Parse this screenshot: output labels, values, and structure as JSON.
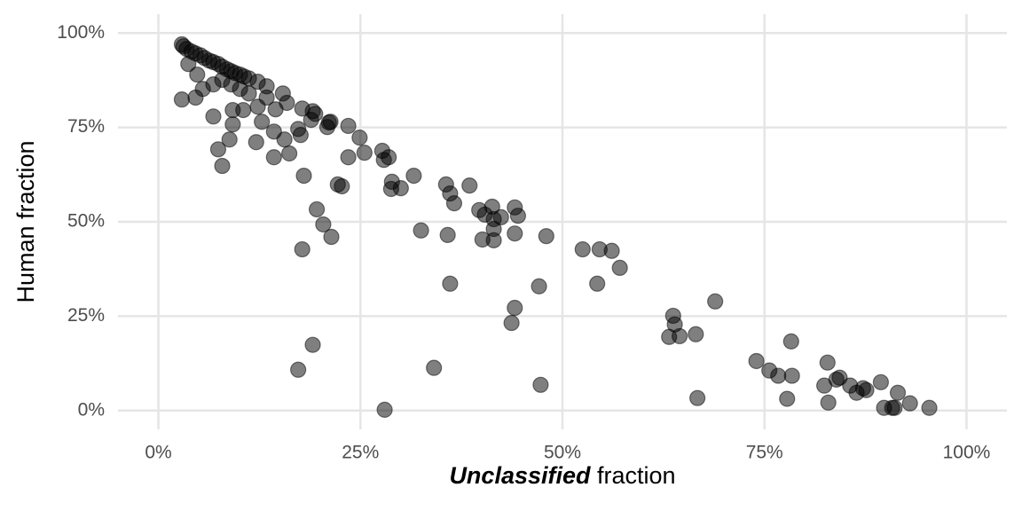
{
  "chart_data": {
    "type": "scatter",
    "xlabel": {
      "emphasis": "Unclassified",
      "rest": "fraction"
    },
    "ylabel": "Human fraction",
    "color": "#000000",
    "opacity": 0.5,
    "grid": true,
    "xlim": [
      -5,
      105
    ],
    "ylim": [
      -5,
      105
    ],
    "xticks": [
      {
        "value": 0,
        "label": "0%"
      },
      {
        "value": 25,
        "label": "25%"
      },
      {
        "value": 50,
        "label": "50%"
      },
      {
        "value": 75,
        "label": "75%"
      },
      {
        "value": 100,
        "label": "100%"
      }
    ],
    "yticks": [
      {
        "value": 0,
        "label": "0%"
      },
      {
        "value": 25,
        "label": "25%"
      },
      {
        "value": 50,
        "label": "50%"
      },
      {
        "value": 75,
        "label": "75%"
      },
      {
        "value": 100,
        "label": "100%"
      }
    ],
    "x": [
      2.9,
      3.1,
      3.5,
      4.1,
      4.6,
      5.2,
      5.7,
      6.3,
      6.8,
      7.4,
      7.9,
      8.5,
      9.0,
      9.5,
      10.1,
      10.6,
      11.2,
      12.3,
      13.4,
      3.7,
      4.8,
      5.5,
      6.8,
      7.9,
      9.0,
      10.1,
      11.2,
      4.6,
      2.9,
      6.8,
      9.2,
      10.5,
      12.3,
      13.4,
      12.8,
      14.3,
      15.4,
      15.9,
      14.5,
      15.6,
      12.1,
      9.2,
      8.8,
      7.4,
      7.9,
      14.3,
      16.2,
      17.8,
      17.6,
      17.3,
      18.9,
      19.1,
      19.4,
      21.1,
      20.9,
      21.3,
      18.0,
      22.2,
      22.7,
      23.5,
      23.5,
      24.9,
      25.5,
      27.7,
      27.9,
      28.5,
      28.9,
      28.8,
      30.0,
      31.6,
      19.6,
      20.4,
      21.4,
      17.8,
      32.5,
      35.6,
      36.1,
      36.6,
      38.5,
      39.7,
      40.4,
      41.3,
      41.5,
      42.4,
      44.1,
      44.5,
      44.1,
      41.5,
      41.5,
      40.1,
      35.8,
      48.0,
      36.1,
      47.1,
      44.1,
      43.7,
      17.3,
      19.1,
      28.0,
      34.1,
      47.3,
      52.5,
      54.6,
      56.1,
      57.1,
      54.3,
      63.7,
      63.9,
      63.2,
      64.5,
      66.5,
      66.7,
      68.9,
      74.0,
      75.6,
      76.7,
      77.8,
      78.4,
      78.3,
      82.8,
      82.4,
      82.9,
      83.9,
      84.3,
      85.6,
      86.4,
      87.2,
      87.6,
      89.4,
      89.8,
      90.8,
      91.1,
      91.5,
      93.0,
      95.4
    ],
    "values": [
      97.0,
      96.5,
      95.8,
      95.1,
      94.6,
      94.1,
      93.4,
      92.7,
      92.3,
      91.8,
      91.1,
      90.4,
      89.9,
      89.4,
      89.0,
      88.5,
      88.0,
      87.1,
      85.9,
      91.8,
      89.0,
      85.2,
      86.4,
      87.6,
      86.4,
      85.2,
      84.0,
      82.9,
      82.4,
      77.9,
      79.6,
      79.6,
      80.5,
      82.9,
      76.5,
      73.9,
      84.0,
      81.5,
      79.8,
      71.8,
      71.1,
      75.8,
      71.8,
      69.2,
      64.8,
      67.1,
      68.1,
      80.0,
      73.0,
      74.6,
      77.0,
      79.3,
      78.6,
      76.3,
      75.1,
      76.5,
      62.2,
      59.9,
      59.4,
      75.4,
      67.1,
      72.3,
      68.3,
      68.8,
      66.4,
      67.1,
      60.6,
      58.7,
      58.9,
      62.2,
      53.3,
      49.3,
      46.0,
      42.7,
      47.7,
      59.9,
      57.5,
      54.9,
      59.6,
      53.1,
      51.9,
      54.0,
      50.7,
      51.2,
      53.8,
      51.6,
      46.9,
      48.1,
      45.1,
      45.3,
      46.5,
      46.2,
      33.6,
      32.9,
      27.2,
      23.2,
      10.8,
      17.4,
      0.2,
      11.3,
      6.8,
      42.7,
      42.7,
      42.3,
      37.8,
      33.6,
      25.1,
      22.8,
      19.5,
      19.7,
      20.2,
      3.3,
      28.9,
      13.1,
      10.6,
      9.2,
      3.1,
      9.2,
      18.3,
      12.7,
      6.6,
      2.1,
      8.2,
      8.7,
      6.6,
      4.7,
      5.9,
      5.4,
      7.5,
      0.7,
      0.7,
      0.7,
      4.7,
      1.9,
      0.7
    ]
  }
}
